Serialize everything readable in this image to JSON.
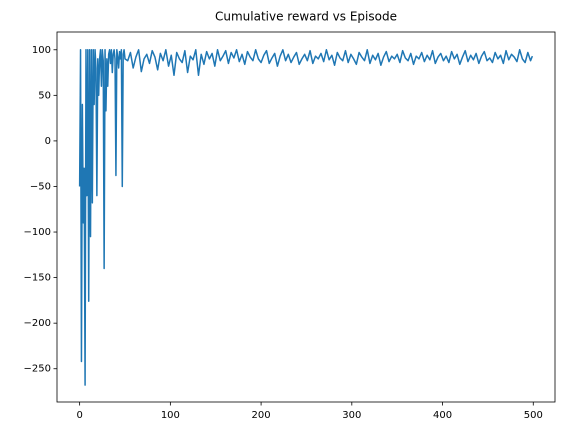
{
  "chart_data": {
    "type": "line",
    "title": "Cumulative reward vs Episode",
    "color": "#1f77b4",
    "x": [
      0,
      1,
      2,
      3,
      4,
      5,
      6,
      7,
      8,
      9,
      10,
      11,
      12,
      13,
      14,
      15,
      16,
      17,
      18,
      19,
      20,
      21,
      22,
      23,
      24,
      25,
      26,
      27,
      28,
      29,
      30,
      31,
      32,
      33,
      34,
      35,
      36,
      37,
      38,
      39,
      40,
      41,
      42,
      43,
      44,
      45,
      46,
      47,
      48,
      49,
      50,
      53,
      56,
      59,
      62,
      65,
      68,
      71,
      74,
      77,
      80,
      83,
      86,
      89,
      92,
      95,
      98,
      101,
      104,
      107,
      110,
      113,
      116,
      119,
      122,
      125,
      128,
      131,
      134,
      137,
      140,
      143,
      146,
      149,
      152,
      155,
      158,
      161,
      164,
      167,
      170,
      173,
      176,
      179,
      182,
      185,
      188,
      191,
      194,
      197,
      200,
      203,
      206,
      209,
      212,
      215,
      218,
      221,
      224,
      227,
      230,
      233,
      236,
      239,
      242,
      245,
      248,
      251,
      254,
      257,
      260,
      263,
      266,
      269,
      272,
      275,
      278,
      281,
      284,
      287,
      290,
      293,
      296,
      299,
      302,
      305,
      308,
      311,
      314,
      317,
      320,
      323,
      326,
      329,
      332,
      335,
      338,
      341,
      344,
      347,
      350,
      353,
      356,
      359,
      362,
      365,
      368,
      371,
      374,
      377,
      380,
      383,
      386,
      389,
      392,
      395,
      398,
      401,
      404,
      407,
      410,
      413,
      416,
      419,
      422,
      425,
      428,
      431,
      434,
      437,
      440,
      443,
      446,
      449,
      452,
      455,
      458,
      461,
      464,
      467,
      470,
      473,
      476,
      479,
      482,
      485,
      488,
      491,
      494,
      497,
      499
    ],
    "values": [
      -50,
      100,
      -242,
      40,
      -90,
      -30,
      -268,
      100,
      -60,
      100,
      -176,
      100,
      -105,
      100,
      -68,
      100,
      40,
      100,
      80,
      -60,
      90,
      50,
      90,
      100,
      60,
      100,
      88,
      -140,
      100,
      33,
      90,
      60,
      95,
      100,
      85,
      100,
      75,
      95,
      100,
      90,
      -38,
      100,
      92,
      80,
      98,
      90,
      100,
      -50,
      95,
      100,
      90,
      88,
      97,
      80,
      92,
      100,
      76,
      90,
      95,
      85,
      99,
      92,
      78,
      96,
      88,
      100,
      82,
      94,
      72,
      97,
      90,
      86,
      99,
      75,
      93,
      89,
      100,
      72,
      95,
      84,
      98,
      90,
      96,
      82,
      100,
      88,
      93,
      99,
      85,
      97,
      91,
      100,
      87,
      95,
      84,
      98,
      92,
      88,
      100,
      90,
      86,
      94,
      99,
      85,
      91,
      96,
      82,
      93,
      100,
      88,
      95,
      86,
      92,
      97,
      84,
      90,
      95,
      88,
      99,
      85,
      93,
      90,
      96,
      87,
      100,
      89,
      94,
      83,
      97,
      91,
      88,
      99,
      86,
      95,
      90,
      84,
      97,
      92,
      88,
      100,
      85,
      94,
      89,
      96,
      83,
      92,
      98,
      87,
      93,
      90,
      95,
      86,
      99,
      91,
      88,
      96,
      84,
      93,
      90,
      97,
      87,
      94,
      89,
      99,
      85,
      92,
      96,
      88,
      93,
      86,
      98,
      90,
      95,
      84,
      92,
      99,
      87,
      94,
      89,
      96,
      85,
      93,
      98,
      88,
      91,
      86,
      97,
      90,
      94,
      85,
      99,
      89,
      95,
      92,
      87,
      100,
      90,
      86,
      97,
      88,
      93
    ],
    "xlim": [
      -24.95,
      523.95
    ],
    "ylim": [
      -286.5,
      119.5
    ],
    "xticks": [
      0,
      100,
      200,
      300,
      400,
      500
    ],
    "yticks": [
      {
        "value": -250,
        "label": "−250"
      },
      {
        "value": -200,
        "label": "−200"
      },
      {
        "value": -150,
        "label": "−150"
      },
      {
        "value": -100,
        "label": "−100"
      },
      {
        "value": -50,
        "label": "−50"
      },
      0,
      50,
      100
    ]
  }
}
